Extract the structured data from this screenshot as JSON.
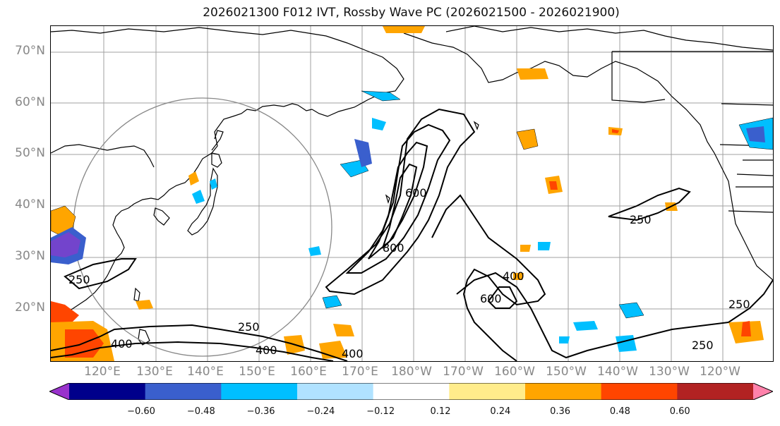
{
  "title": "2026021300 F012 IVT, Rossby Wave PC (2026021500 - 2026021900)",
  "lat_labels": [
    "70°N",
    "60°N",
    "50°N",
    "40°N",
    "30°N",
    "20°N"
  ],
  "lon_labels": [
    "120°E",
    "130°E",
    "140°E",
    "150°E",
    "160°E",
    "170°E",
    "180°W",
    "170°W",
    "160°W",
    "150°W",
    "140°W",
    "130°W",
    "120°W"
  ],
  "contour_labels": [
    "250",
    "250",
    "250",
    "250",
    "400",
    "400",
    "400",
    "400",
    "600",
    "600",
    "800",
    "250"
  ],
  "colorbar": {
    "colors": [
      "#9932cc",
      "#00008b",
      "#3a5fcd",
      "#00bfff",
      "#b0e2ff",
      "#ffffff",
      "#ffec8b",
      "#ffa500",
      "#ff4500",
      "#b22222",
      "#ff82ab"
    ],
    "tick_labels": [
      "−0.60",
      "−0.48",
      "−0.36",
      "−0.24",
      "−0.12",
      "0.12",
      "0.24",
      "0.36",
      "0.48",
      "0.60"
    ]
  }
}
